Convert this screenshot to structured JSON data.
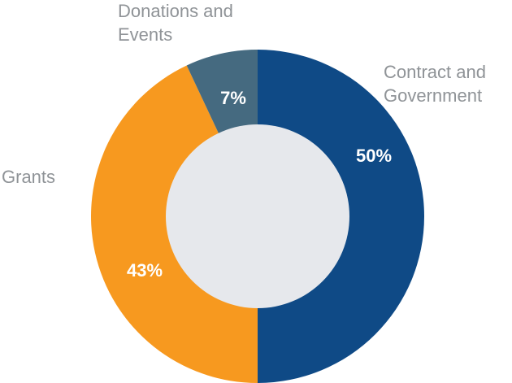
{
  "chart_data": {
    "type": "pie",
    "variant": "donut",
    "slices": [
      {
        "label_lines": [
          "Contract and",
          "Government"
        ],
        "value": 50,
        "value_label": "50%",
        "color": "#0f4a86"
      },
      {
        "label_lines": [
          "Grants"
        ],
        "value": 43,
        "value_label": "43%",
        "color": "#f7991f"
      },
      {
        "label_lines": [
          "Donations and",
          "Events"
        ],
        "value": 7,
        "value_label": "7%",
        "color": "#456a80"
      }
    ],
    "center_color": "#e6e8ec",
    "label_color": "#8f9397"
  }
}
